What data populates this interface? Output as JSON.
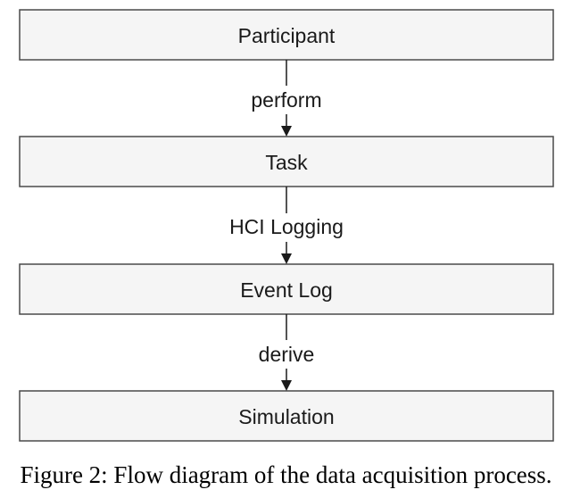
{
  "diagram": {
    "nodes": [
      {
        "id": "participant",
        "label": "Participant"
      },
      {
        "id": "task",
        "label": "Task"
      },
      {
        "id": "event-log",
        "label": "Event Log"
      },
      {
        "id": "simulation",
        "label": "Simulation"
      }
    ],
    "edges": [
      {
        "from": "participant",
        "to": "task",
        "label": "perform"
      },
      {
        "from": "task",
        "to": "event-log",
        "label": "HCI Logging"
      },
      {
        "from": "event-log",
        "to": "simulation",
        "label": "derive"
      }
    ],
    "colors": {
      "box_fill": "#f5f5f5",
      "box_stroke": "#4a4a4a",
      "text": "#1a1a1a"
    }
  },
  "caption": "Figure 2: Flow diagram of the data acquisition process."
}
